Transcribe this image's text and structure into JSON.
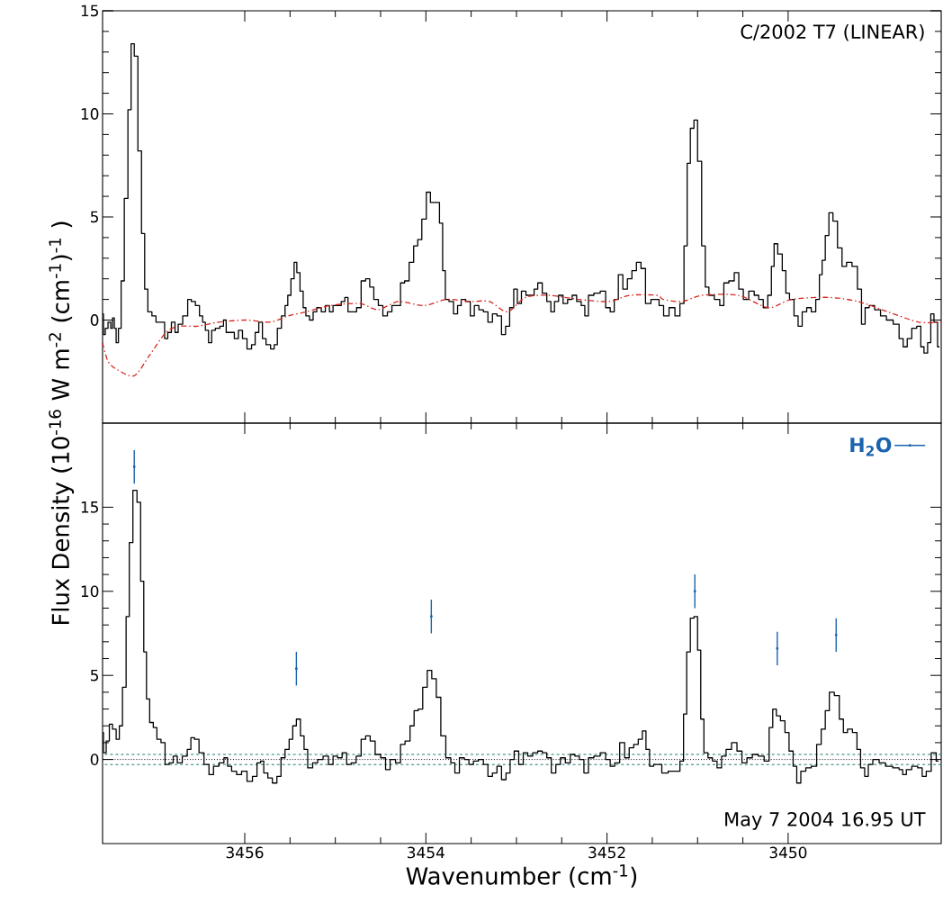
{
  "chart_data": [
    {
      "type": "step",
      "annotations": [
        "C/2002 T7 (LINEAR)"
      ],
      "xlim": [
        3457.57,
        3448.31
      ],
      "xticks": [
        3456,
        3454,
        3452,
        3450
      ],
      "ylim": [
        -5,
        15
      ],
      "yticks": [
        0,
        5,
        10,
        15
      ],
      "tick_labels": "y",
      "series": [
        {
          "color": "#000000",
          "x": [
            3457.57,
            3457.55,
            3457.53,
            3457.49,
            3457.47,
            3457.45,
            3457.43,
            3457.41,
            3457.38,
            3457.35,
            3457.31,
            3457.27,
            3457.24,
            3457.2,
            3457.16,
            3457.12,
            3457.09,
            3457.05,
            3457.0,
            3456.96,
            3456.9,
            3456.87,
            3456.83,
            3456.79,
            3456.75,
            3456.72,
            3456.65,
            3456.61,
            3456.57,
            3456.52,
            3456.48,
            3456.45,
            3456.42,
            3456.38,
            3456.35,
            3456.3,
            3456.25,
            3456.22,
            3456.19,
            3456.14,
            3456.09,
            3456.05,
            3456.0,
            3455.95,
            3455.9,
            3455.87,
            3455.82,
            3455.79,
            3455.74,
            3455.69,
            3455.66,
            3455.62,
            3455.57,
            3455.54,
            3455.51,
            3455.47,
            3455.44,
            3455.41,
            3455.37,
            3455.34,
            3455.31,
            3455.26,
            3455.23,
            3455.18,
            3455.13,
            3455.09,
            3455.04,
            3455.01,
            3454.96,
            3454.91,
            3454.88,
            3454.84,
            3454.79,
            3454.74,
            3454.69,
            3454.64,
            3454.6,
            3454.55,
            3454.5,
            3454.45,
            3454.4,
            3454.35,
            3454.3,
            3454.26,
            3454.21,
            3454.16,
            3454.11,
            3454.07,
            3454.02,
            3453.97,
            3453.93,
            3453.87,
            3453.83,
            3453.8,
            3453.77,
            3453.72,
            3453.67,
            3453.63,
            3453.59,
            3453.53,
            3453.49,
            3453.44,
            3453.39,
            3453.34,
            3453.29,
            3453.24,
            3453.19,
            3453.14,
            3453.1,
            3453.05,
            3453.01,
            3452.97,
            3452.92,
            3452.87,
            3452.82,
            3452.79,
            3452.74,
            3452.69,
            3452.64,
            3452.6,
            3452.56,
            3452.51,
            3452.46,
            3452.41,
            3452.36,
            3452.31,
            3452.26,
            3452.23,
            3452.18,
            3452.11,
            3452.04,
            3451.99,
            3451.94,
            3451.9,
            3451.85,
            3451.8,
            3451.75,
            3451.7,
            3451.65,
            3451.6,
            3451.55,
            3451.48,
            3451.45,
            3451.4,
            3451.35,
            3451.28,
            3451.22,
            3451.17,
            3451.13,
            3451.1,
            3451.06,
            3451.02,
            3450.98,
            3450.93,
            3450.9,
            3450.85,
            3450.78,
            3450.73,
            3450.69,
            3450.62,
            3450.57,
            3450.52,
            3450.47,
            3450.4,
            3450.35,
            3450.3,
            3450.25,
            3450.2,
            3450.17,
            3450.14,
            3450.09,
            3450.04,
            3450.01,
            3449.96,
            3449.91,
            3449.87,
            3449.82,
            3449.77,
            3449.72,
            3449.67,
            3449.64,
            3449.61,
            3449.57,
            3449.53,
            3449.48,
            3449.43,
            3449.38,
            3449.33,
            3449.26,
            3449.21,
            3449.17,
            3449.13,
            3449.08,
            3449.01,
            3448.95,
            3448.88,
            3448.8,
            3448.75,
            3448.71,
            3448.66,
            3448.61,
            3448.55,
            3448.52,
            3448.48,
            3448.44,
            3448.41,
            3448.37,
            3448.33
          ],
          "values": [
            0.3,
            -0.7,
            -0.4,
            -0.1,
            -0.4,
            0.1,
            -0.4,
            -1.1,
            -0.4,
            1.9,
            5.9,
            10.2,
            13.4,
            12.8,
            8.2,
            4.2,
            1.5,
            0.4,
            0.2,
            -0.1,
            -0.1,
            -0.9,
            -0.6,
            -0.1,
            -0.6,
            -0.2,
            0.2,
            1.0,
            0.9,
            0.7,
            0.2,
            -0.1,
            -0.5,
            -1.1,
            -0.5,
            -0.4,
            -0.3,
            0.0,
            -0.6,
            -0.6,
            -0.9,
            -0.5,
            -0.9,
            -1.4,
            -1.2,
            -0.6,
            -0.1,
            -0.9,
            -1.2,
            -1.4,
            -1.2,
            -0.4,
            0.2,
            0.7,
            1.2,
            2.0,
            2.8,
            2.3,
            1.4,
            0.6,
            0.2,
            0.0,
            0.4,
            0.6,
            0.4,
            0.7,
            0.4,
            0.7,
            0.7,
            0.9,
            1.1,
            0.4,
            0.4,
            0.6,
            1.9,
            2.0,
            1.6,
            1.0,
            0.7,
            0.2,
            0.4,
            0.7,
            0.7,
            1.8,
            1.9,
            2.8,
            3.6,
            3.9,
            4.9,
            6.2,
            5.7,
            5.7,
            4.7,
            2.4,
            1.0,
            0.9,
            0.3,
            0.7,
            1.0,
            0.9,
            0.2,
            0.7,
            0.5,
            0.4,
            -0.1,
            0.3,
            0.2,
            -0.7,
            -0.3,
            0.6,
            1.5,
            0.8,
            1.4,
            1.2,
            1.2,
            1.5,
            1.8,
            1.3,
            0.9,
            0.4,
            0.9,
            1.2,
            0.8,
            1.0,
            1.2,
            0.9,
            0.7,
            0.2,
            1.2,
            1.3,
            1.4,
            0.6,
            0.4,
            1.0,
            2.2,
            1.5,
            2.0,
            2.4,
            2.8,
            2.5,
            0.8,
            1.0,
            1.0,
            0.7,
            0.2,
            0.6,
            0.2,
            0.8,
            3.6,
            7.6,
            9.3,
            9.7,
            7.7,
            3.6,
            1.6,
            1.2,
            1.0,
            0.7,
            1.8,
            1.9,
            2.3,
            1.5,
            1.0,
            1.4,
            1.2,
            1.0,
            0.6,
            1.2,
            2.6,
            3.7,
            3.2,
            2.4,
            1.3,
            1.0,
            0.2,
            -0.3,
            0.4,
            0.6,
            0.4,
            1.0,
            2.2,
            2.9,
            4.1,
            5.2,
            4.8,
            3.5,
            2.6,
            2.8,
            2.6,
            1.5,
            -0.2,
            0.6,
            0.7,
            0.5,
            0.2,
            0.0,
            -0.2,
            -0.9,
            -1.3,
            -0.9,
            -0.4,
            -0.3,
            -1.3,
            -1.6,
            -1.1,
            0.3,
            -0.1,
            -1.3
          ]
        },
        {
          "type": "line",
          "color": "#d7261e",
          "line_style": "dashdot",
          "x": [
            3457.57,
            3457.51,
            3457.41,
            3457.22,
            3457.05,
            3456.87,
            3456.72,
            3456.52,
            3456.29,
            3455.99,
            3455.72,
            3455.52,
            3455.32,
            3455.06,
            3454.73,
            3454.53,
            3454.3,
            3454.02,
            3453.77,
            3453.53,
            3453.3,
            3453.1,
            3452.9,
            3452.64,
            3452.31,
            3451.98,
            3451.75,
            3451.45,
            3451.38,
            3451.17,
            3450.95,
            3450.55,
            3450.22,
            3449.96,
            3449.56,
            3449.23,
            3448.9,
            3448.56,
            3448.31
          ],
          "values": [
            -1.1,
            -2.0,
            -2.4,
            -2.7,
            -1.7,
            -0.6,
            -0.3,
            -0.3,
            -0.1,
            0.0,
            -0.1,
            0.2,
            0.4,
            0.7,
            0.8,
            0.5,
            0.9,
            0.7,
            1.0,
            0.9,
            0.9,
            0.4,
            1.1,
            1.2,
            1.0,
            0.9,
            1.2,
            1.2,
            1.0,
            0.9,
            1.2,
            1.2,
            0.6,
            1.0,
            1.1,
            0.9,
            0.4,
            -0.1,
            -0.1
          ]
        }
      ]
    },
    {
      "type": "step",
      "xlabel": "Wavenumber (cm$^{-1}$)",
      "ylabel": "Flux Density (10$^{-16}$ W m$^{-2}$ (cm$^{-1}$)$^{-1}$ )",
      "annotations": [
        "May 7 2004 16.95 UT"
      ],
      "xlim": [
        3457.57,
        3448.31
      ],
      "xticks": [
        3456,
        3454,
        3452,
        3450
      ],
      "ylim": [
        -5,
        20
      ],
      "yticks": [
        0,
        5,
        10,
        15
      ],
      "legend": "top right",
      "ref_lines": [
        {
          "axis": "y",
          "value": 0.3,
          "color": "#1b7a6f",
          "line_style": "dashed"
        },
        {
          "axis": "y",
          "value": 0.0,
          "color": "#000000",
          "line_style": "dotted"
        },
        {
          "axis": "y",
          "value": -0.3,
          "color": "#1b7a6f",
          "line_style": "dashed"
        }
      ],
      "series": [
        {
          "color": "#000000",
          "x": [
            3457.57,
            3457.55,
            3457.51,
            3457.48,
            3457.44,
            3457.4,
            3457.37,
            3457.33,
            3457.29,
            3457.26,
            3457.21,
            3457.17,
            3457.13,
            3457.1,
            3457.07,
            3457.03,
            3456.99,
            3456.95,
            3456.9,
            3456.86,
            3456.81,
            3456.77,
            3456.72,
            3456.66,
            3456.61,
            3456.58,
            3456.53,
            3456.48,
            3456.42,
            3456.37,
            3456.32,
            3456.25,
            3456.21,
            3456.17,
            3456.12,
            3456.06,
            3456.01,
            3455.94,
            3455.89,
            3455.84,
            3455.81,
            3455.77,
            3455.72,
            3455.67,
            3455.62,
            3455.58,
            3455.53,
            3455.49,
            3455.45,
            3455.41,
            3455.36,
            3455.33,
            3455.28,
            3455.22,
            3455.17,
            3455.1,
            3455.05,
            3455.0,
            3454.95,
            3454.9,
            3454.85,
            3454.8,
            3454.74,
            3454.69,
            3454.64,
            3454.59,
            3454.53,
            3454.47,
            3454.42,
            3454.37,
            3454.3,
            3454.26,
            3454.2,
            3454.15,
            3454.11,
            3454.06,
            3454.01,
            3453.96,
            3453.91,
            3453.86,
            3453.81,
            3453.75,
            3453.7,
            3453.66,
            3453.6,
            3453.55,
            3453.5,
            3453.45,
            3453.39,
            3453.34,
            3453.29,
            3453.24,
            3453.19,
            3453.14,
            3453.09,
            3453.05,
            3453.0,
            3452.95,
            3452.9,
            3452.85,
            3452.79,
            3452.74,
            3452.69,
            3452.64,
            3452.59,
            3452.54,
            3452.49,
            3452.43,
            3452.38,
            3452.33,
            3452.28,
            3452.23,
            3452.18,
            3452.11,
            3452.04,
            3451.99,
            3451.94,
            3451.89,
            3451.83,
            3451.78,
            3451.73,
            3451.68,
            3451.63,
            3451.59,
            3451.55,
            3451.51,
            3451.46,
            3451.43,
            3451.36,
            3451.29,
            3451.22,
            3451.17,
            3451.14,
            3451.1,
            3451.06,
            3451.02,
            3450.98,
            3450.95,
            3450.91,
            3450.86,
            3450.81,
            3450.76,
            3450.71,
            3450.66,
            3450.59,
            3450.54,
            3450.48,
            3450.43,
            3450.36,
            3450.3,
            3450.23,
            3450.19,
            3450.15,
            3450.11,
            3450.06,
            3450.01,
            3449.97,
            3449.92,
            3449.89,
            3449.83,
            3449.78,
            3449.71,
            3449.66,
            3449.61,
            3449.57,
            3449.52,
            3449.46,
            3449.41,
            3449.37,
            3449.32,
            3449.26,
            3449.22,
            3449.18,
            3449.13,
            3449.1,
            3449.03,
            3448.96,
            3448.89,
            3448.8,
            3448.75,
            3448.72,
            3448.67,
            3448.6,
            3448.54,
            3448.5,
            3448.45,
            3448.39,
            3448.34
          ],
          "values": [
            1.6,
            0.4,
            1.1,
            2.1,
            1.8,
            1.2,
            2.0,
            4.3,
            8.5,
            12.9,
            16.0,
            15.3,
            10.6,
            6.4,
            3.6,
            2.2,
            1.9,
            1.2,
            1.0,
            -0.3,
            -0.2,
            0.2,
            -0.2,
            0.2,
            0.6,
            1.3,
            1.2,
            0.4,
            -0.3,
            -0.9,
            -0.4,
            -0.2,
            0.1,
            -0.4,
            -0.7,
            -0.9,
            -0.7,
            -1.3,
            -1.0,
            -0.2,
            -0.1,
            -0.8,
            -1.1,
            -1.4,
            -1.0,
            0.1,
            0.6,
            1.2,
            2.0,
            2.4,
            1.4,
            0.6,
            -0.5,
            -0.2,
            0.0,
            0.2,
            -0.3,
            0.2,
            0.1,
            0.4,
            -0.3,
            -0.2,
            0.2,
            1.2,
            1.4,
            1.1,
            0.3,
            0.1,
            -0.6,
            0.0,
            -0.2,
            0.9,
            1.1,
            2.0,
            2.9,
            3.0,
            4.3,
            5.3,
            4.8,
            3.7,
            1.4,
            0.1,
            -0.2,
            -0.8,
            0.1,
            0.0,
            -0.3,
            -0.1,
            0.0,
            -0.3,
            -1.0,
            -0.8,
            -0.4,
            -1.2,
            -0.8,
            0.0,
            0.5,
            -0.3,
            0.4,
            0.2,
            0.4,
            0.5,
            0.4,
            0.1,
            -0.8,
            -0.3,
            0.1,
            -0.2,
            0.3,
            0.2,
            0.0,
            -0.8,
            0.1,
            0.2,
            0.4,
            0.0,
            -0.4,
            -0.2,
            1.0,
            0.1,
            0.7,
            0.9,
            1.2,
            1.7,
            0.6,
            -0.4,
            -0.3,
            -0.3,
            -0.8,
            -0.7,
            -0.7,
            -0.1,
            2.7,
            6.4,
            8.4,
            8.5,
            6.5,
            2.4,
            0.4,
            0.1,
            -0.1,
            -0.5,
            0.2,
            0.6,
            1.0,
            0.5,
            -0.2,
            0.1,
            0.3,
            0.2,
            -0.1,
            1.9,
            3.0,
            2.6,
            2.3,
            1.6,
            0.5,
            -0.4,
            -1.4,
            -0.7,
            -0.5,
            -0.4,
            0.9,
            1.8,
            2.9,
            4.0,
            3.8,
            2.4,
            1.6,
            1.8,
            1.6,
            0.6,
            -0.5,
            -1.0,
            -0.3,
            0.0,
            -0.2,
            -0.4,
            -0.5,
            -0.6,
            -0.9,
            -0.6,
            -0.4,
            -0.5,
            -1.0,
            -0.7,
            0.4,
            -0.1
          ]
        },
        {
          "type": "scatter",
          "name": "H$_{2}$O",
          "color": "#1a63ad",
          "marker": "circle",
          "x": [
            3457.22,
            3455.43,
            3453.94,
            3451.03,
            3450.12,
            3449.47
          ],
          "values": [
            17.4,
            5.4,
            8.5,
            10.0,
            6.6,
            7.4
          ],
          "errors": [
            1.0,
            1.0,
            1.0,
            1.0,
            1.0,
            1.0
          ]
        }
      ]
    }
  ]
}
